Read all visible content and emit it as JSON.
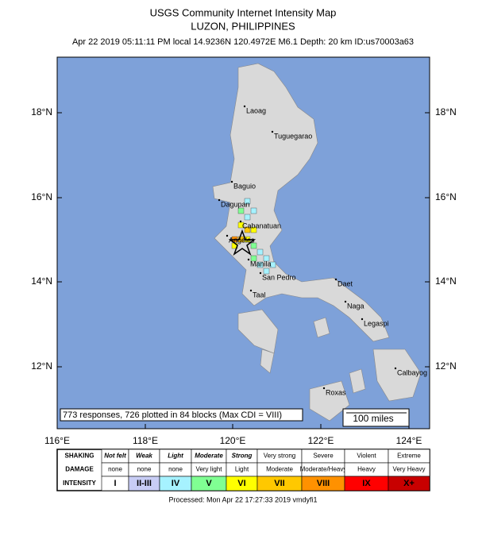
{
  "header": {
    "title": "USGS Community Internet Intensity Map",
    "subtitle": "LUZON, PHILIPPINES",
    "info": "Apr 22 2019 05:11:11 PM local 14.9236N 120.4972E M6.1 Depth: 20 km ID:us70003a63"
  },
  "map": {
    "lat_labels": [
      "18°N",
      "16°N",
      "14°N",
      "12°N"
    ],
    "lon_labels": [
      "116°E",
      "118°E",
      "120°E",
      "122°E",
      "124°E"
    ],
    "cities": [
      "Laoag",
      "Tuguegarao",
      "Baguio",
      "Dagupan",
      "Cabanatuan",
      "Angeles",
      "Manila",
      "San Pedro",
      "Taal",
      "Daet",
      "Naga",
      "Legaspi",
      "Calbayog",
      "Roxas"
    ],
    "responses_note": "773 responses, 726 plotted in 84 blocks (Max CDI = VIII)",
    "scale_label": "100 miles"
  },
  "legend": {
    "row_labels": [
      "SHAKING",
      "DAMAGE",
      "INTENSITY"
    ],
    "shaking": [
      "Not felt",
      "Weak",
      "Light",
      "Moderate",
      "Strong",
      "Very strong",
      "Severe",
      "Violent",
      "Extreme"
    ],
    "damage": [
      "none",
      "none",
      "none",
      "Very light",
      "Light",
      "Moderate",
      "Moderate/Heavy",
      "Heavy",
      "Very Heavy"
    ],
    "intensity": [
      "I",
      "II-III",
      "IV",
      "V",
      "VI",
      "VII",
      "VIII",
      "IX",
      "X+"
    ],
    "colors": [
      "#ffffff",
      "#c8cdf5",
      "#a6f2ff",
      "#80ff93",
      "#ffff00",
      "#ffc800",
      "#ff9100",
      "#ff0000",
      "#c80000"
    ]
  },
  "footer": "Processed: Mon Apr 22 17:27:33 2019 vmdyfi1"
}
